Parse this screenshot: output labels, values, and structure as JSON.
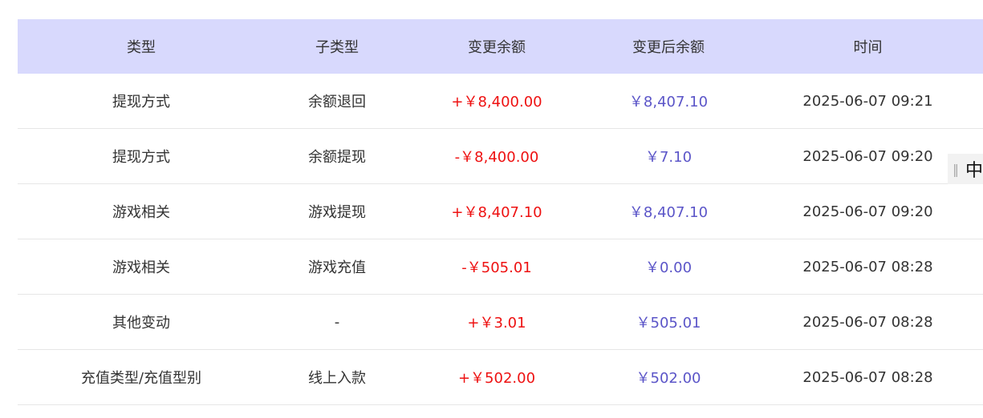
{
  "table": {
    "headers": [
      "类型",
      "子类型",
      "变更余额",
      "变更后余额",
      "时间"
    ],
    "rows": [
      [
        "提现方式",
        "余额退回",
        "+￥8,400.00",
        "￥8,407.10",
        "2025-06-07 09:21"
      ],
      [
        "提现方式",
        "余额提现",
        "-￥8,400.00",
        "￥7.10",
        "2025-06-07 09:20"
      ],
      [
        "游戏相关",
        "游戏提现",
        "+￥8,407.10",
        "￥8,407.10",
        "2025-06-07 09:20"
      ],
      [
        "游戏相关",
        "游戏充值",
        "-￥505.01",
        "￥0.00",
        "2025-06-07 08:28"
      ],
      [
        "其他变动",
        "-",
        "+￥3.01",
        "￥505.01",
        "2025-06-07 08:28"
      ],
      [
        "充值类型/充值型别",
        "线上入款",
        "+￥502.00",
        "￥502.00",
        "2025-06-07 08:28"
      ]
    ]
  },
  "widget": {
    "label": "中"
  }
}
